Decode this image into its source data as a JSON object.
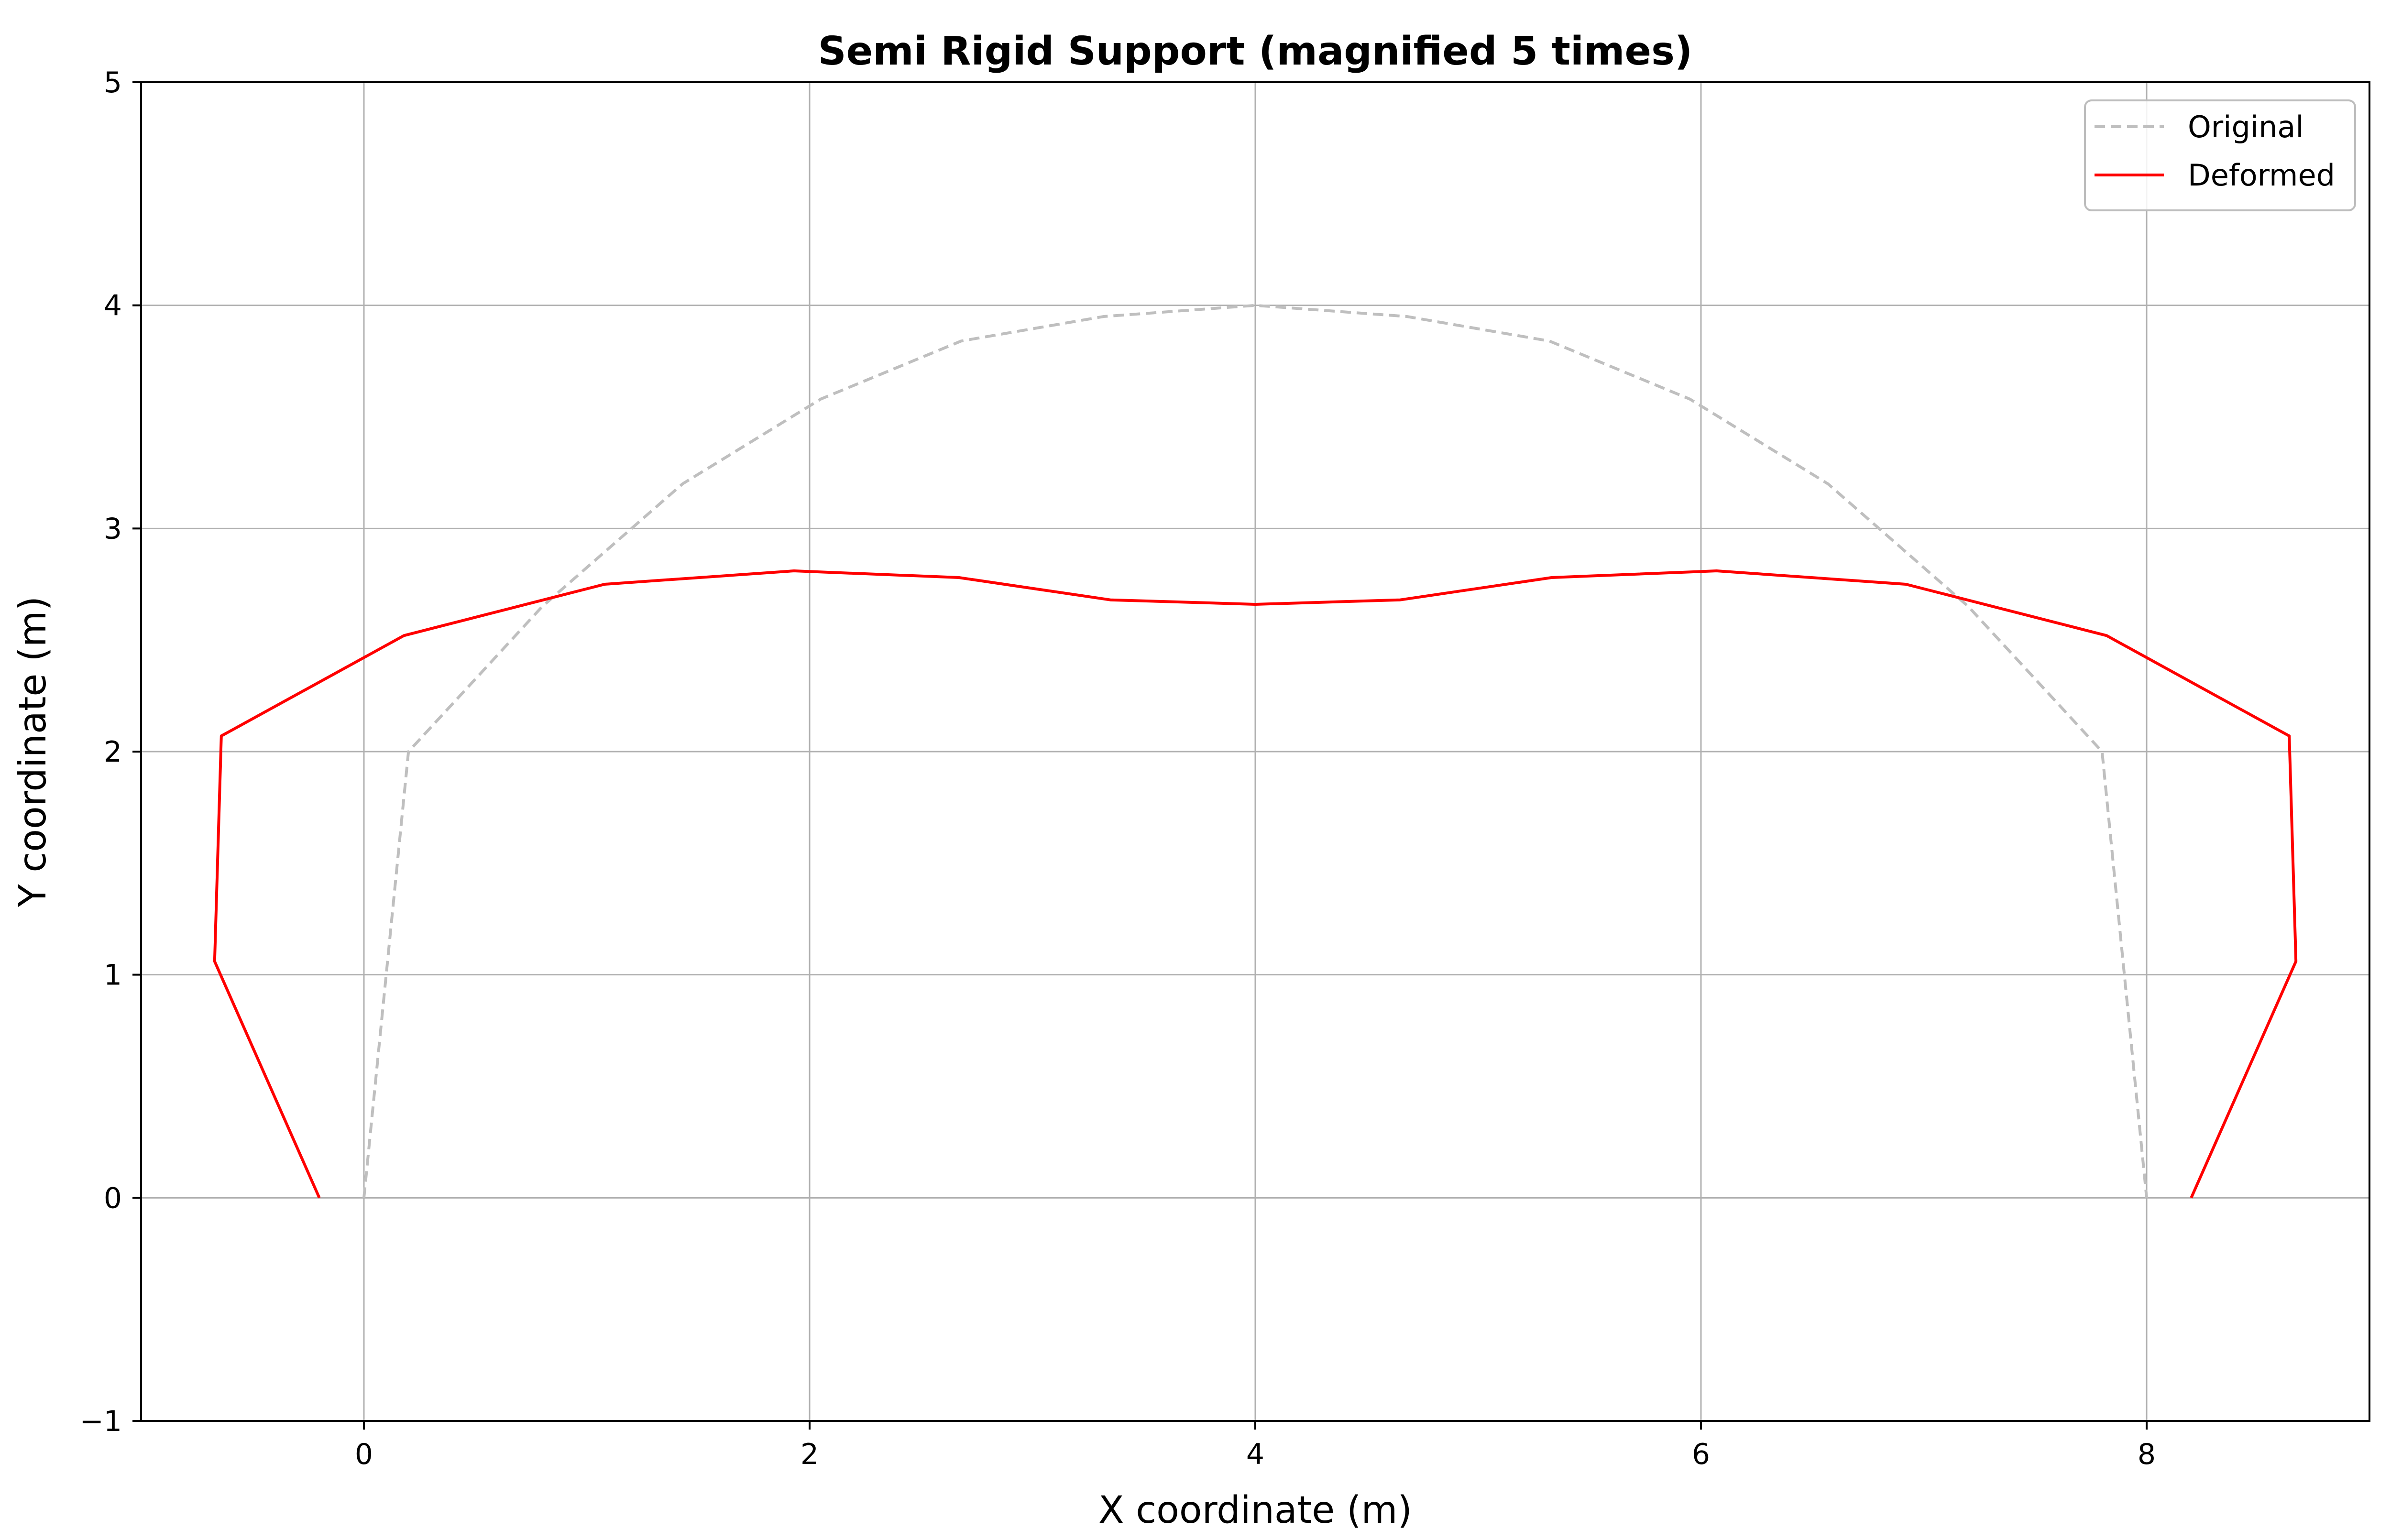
{
  "chart_data": {
    "type": "line",
    "title": "Semi Rigid Support (magnified 5 times)",
    "xlabel": "X coordinate (m)",
    "ylabel": "Y coordinate (m)",
    "xlim": [
      -1,
      9
    ],
    "ylim": [
      -1,
      5
    ],
    "xticks": [
      0,
      2,
      4,
      6,
      8
    ],
    "yticks": [
      -1,
      0,
      1,
      2,
      3,
      4,
      5
    ],
    "x_tick_labels": [
      "0",
      "2",
      "4",
      "6",
      "8"
    ],
    "y_tick_labels": [
      "−1",
      "0",
      "1",
      "2",
      "3",
      "4",
      "5"
    ],
    "grid": true,
    "legend_position": "top-right",
    "series": [
      {
        "name": "Original",
        "style": "dashed",
        "color": "#bfbfbf",
        "x": [
          0.0,
          0.2,
          0.8,
          1.43,
          2.05,
          2.68,
          3.32,
          4.0,
          4.68,
          5.32,
          5.95,
          6.57,
          7.2,
          7.8,
          8.0
        ],
        "y": [
          0.0,
          2.0,
          2.65,
          3.2,
          3.58,
          3.84,
          3.95,
          4.0,
          3.95,
          3.84,
          3.58,
          3.2,
          2.65,
          2.0,
          0.0
        ]
      },
      {
        "name": "Deformed",
        "style": "solid",
        "color": "#ff0000",
        "x": [
          -0.2,
          -0.67,
          -0.64,
          0.18,
          1.08,
          1.93,
          2.67,
          3.35,
          4.0,
          4.65,
          5.33,
          6.07,
          6.92,
          7.82,
          8.64,
          8.67,
          8.2
        ],
        "y": [
          0.0,
          1.06,
          2.07,
          2.52,
          2.75,
          2.81,
          2.78,
          2.68,
          2.66,
          2.68,
          2.78,
          2.81,
          2.75,
          2.52,
          2.07,
          1.06,
          0.0
        ]
      }
    ]
  }
}
